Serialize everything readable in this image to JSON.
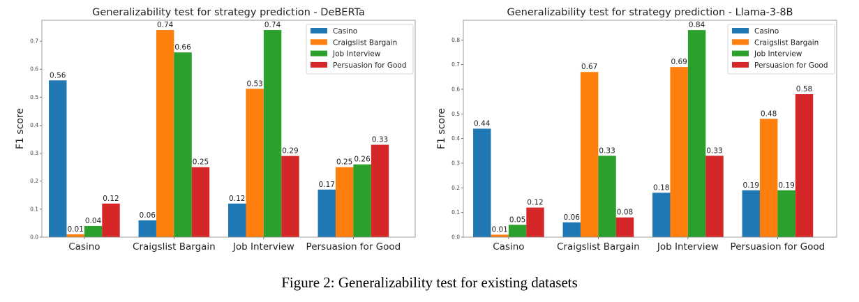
{
  "caption": "Figure 2: Generalizability test for existing datasets",
  "colors": {
    "Casino": "#1f77b4",
    "Craigslist Bargain": "#ff7f0e",
    "Job Interview": "#2ca02c",
    "Persuasion for Good": "#d62728"
  },
  "chart_data": [
    {
      "type": "bar",
      "title": "Generalizability test for strategy prediction - DeBERTa",
      "xlabel": "",
      "ylabel": "F1 score",
      "categories": [
        "Casino",
        "Craigslist Bargain",
        "Job Interview",
        "Persuasion for Good"
      ],
      "series": [
        {
          "name": "Casino",
          "values": [
            0.56,
            0.06,
            0.12,
            0.17
          ]
        },
        {
          "name": "Craigslist Bargain",
          "values": [
            0.01,
            0.74,
            0.53,
            0.25
          ]
        },
        {
          "name": "Job Interview",
          "values": [
            0.04,
            0.66,
            0.74,
            0.26
          ]
        },
        {
          "name": "Persuasion for Good",
          "values": [
            0.12,
            0.25,
            0.29,
            0.33
          ]
        }
      ],
      "yticks": [
        "0.0",
        "0.1",
        "0.2",
        "0.3",
        "0.4",
        "0.5",
        "0.6",
        "0.7"
      ],
      "ylim": [
        0,
        0.775
      ],
      "grid": false,
      "legend": "top-right"
    },
    {
      "type": "bar",
      "title": "Generalizability test for strategy prediction - Llama-3-8B",
      "xlabel": "",
      "ylabel": "F1 score",
      "categories": [
        "Casino",
        "Craigslist Bargain",
        "Job Interview",
        "Persuasion for Good"
      ],
      "series": [
        {
          "name": "Casino",
          "values": [
            0.44,
            0.06,
            0.18,
            0.19
          ]
        },
        {
          "name": "Craigslist Bargain",
          "values": [
            0.01,
            0.67,
            0.69,
            0.48
          ]
        },
        {
          "name": "Job Interview",
          "values": [
            0.05,
            0.33,
            0.84,
            0.19
          ]
        },
        {
          "name": "Persuasion for Good",
          "values": [
            0.12,
            0.08,
            0.33,
            0.58
          ]
        }
      ],
      "yticks": [
        "0.0",
        "0.1",
        "0.2",
        "0.3",
        "0.4",
        "0.5",
        "0.6",
        "0.7",
        "0.8"
      ],
      "ylim": [
        0,
        0.88
      ],
      "grid": false,
      "legend": "top-right"
    }
  ]
}
